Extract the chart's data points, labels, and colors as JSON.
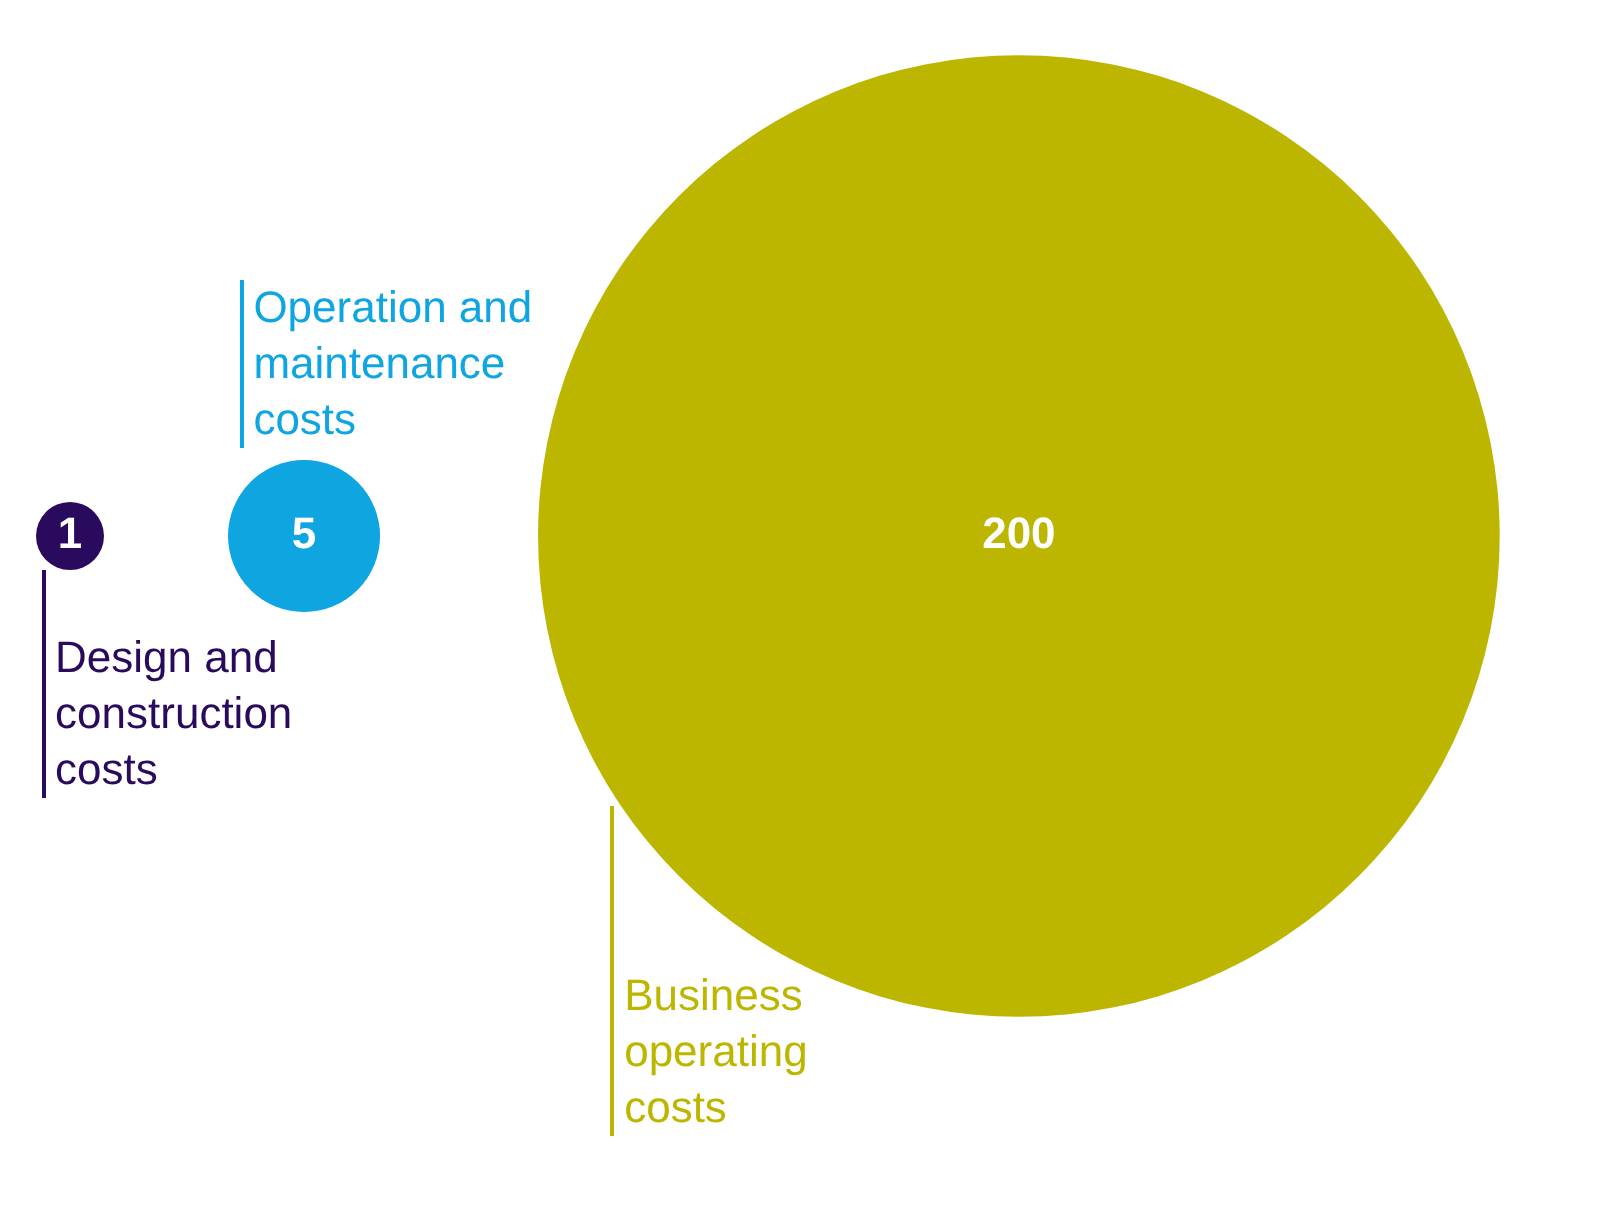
{
  "chart_data": {
    "type": "other",
    "categories": [
      "Design and construction costs",
      "Operation and maintenance costs",
      "Business operating costs"
    ],
    "values": [
      1,
      5,
      200
    ],
    "colors": [
      "#2a0a5c",
      "#0ea5e0",
      "#bdb600"
    ],
    "data_labels": true
  }
}
